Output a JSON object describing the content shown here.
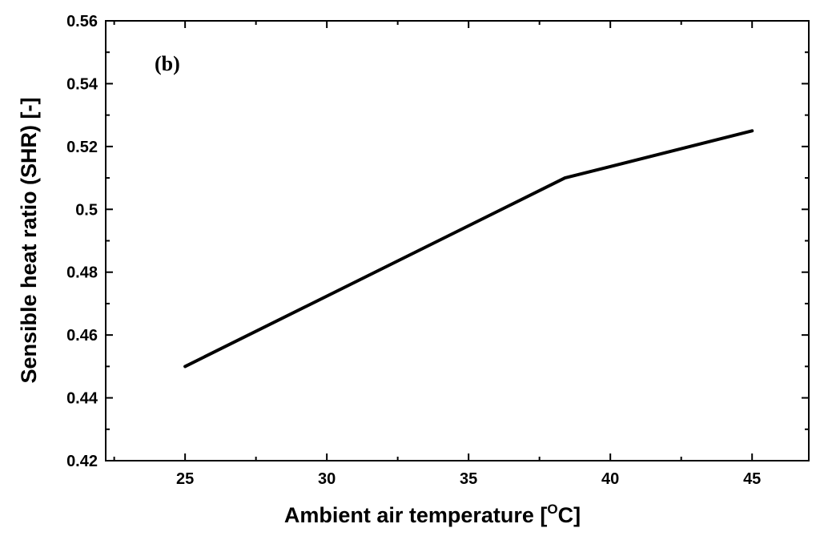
{
  "chart_data": {
    "type": "line",
    "panel_label": "(b)",
    "title": "",
    "xlabel": "Ambient air temperature [",
    "xlabel_sup": "O",
    "xlabel_end": "C]",
    "ylabel": "Sensible heat ratio (SHR) [-]",
    "xlim": [
      22.2,
      47
    ],
    "ylim": [
      0.42,
      0.56
    ],
    "x_ticks": [
      25,
      30,
      35,
      40,
      45
    ],
    "x_tick_labels": [
      "25",
      "30",
      "35",
      "40",
      "45"
    ],
    "y_ticks": [
      0.42,
      0.44,
      0.46,
      0.48,
      0.5,
      0.52,
      0.54,
      0.56
    ],
    "y_tick_labels": [
      "0.42",
      "0.44",
      "0.46",
      "0.48",
      "0.5",
      "0.52",
      "0.54",
      "0.56"
    ],
    "grid": false,
    "series": [
      {
        "x": [
          25,
          38.4,
          45
        ],
        "y": [
          0.45,
          0.51,
          0.525
        ],
        "color": "#000000"
      }
    ]
  }
}
